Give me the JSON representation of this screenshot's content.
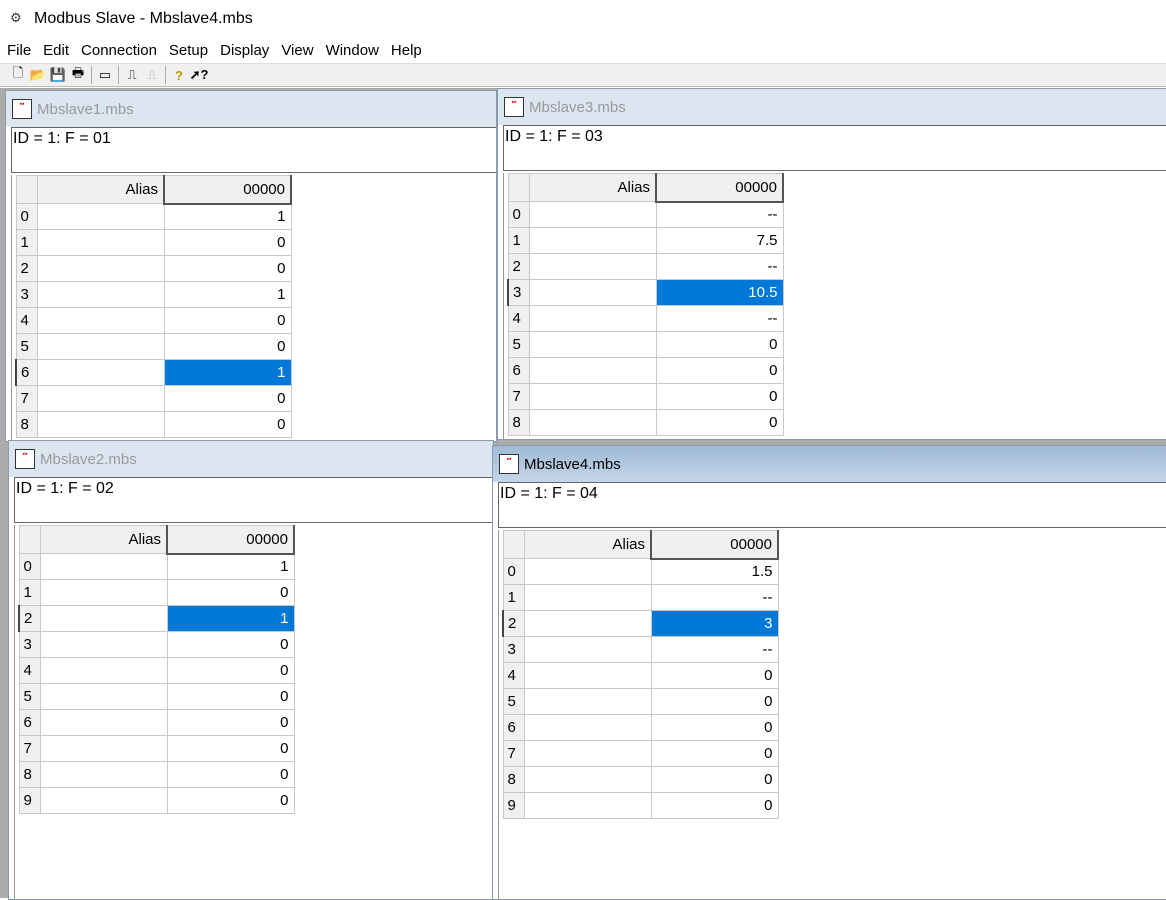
{
  "app": {
    "title": "Modbus Slave - Mbslave4.mbs"
  },
  "menu": [
    "File",
    "Edit",
    "Connection",
    "Setup",
    "Display",
    "View",
    "Window",
    "Help"
  ],
  "toolbar": [
    "new-icon",
    "open-icon",
    "save-icon",
    "print-icon",
    "window-icon",
    "connect-icon",
    "disconnect-icon",
    "help-icon",
    "context-help-icon"
  ],
  "windows": [
    {
      "id": "w1",
      "title": "Mbslave1.mbs",
      "info": "ID = 1: F = 01",
      "active": false,
      "alias_header": "Alias",
      "col_header": "00000",
      "rows": [
        "0",
        "1",
        "2",
        "3",
        "4",
        "5",
        "6",
        "7",
        "8"
      ],
      "values": [
        "1",
        "0",
        "0",
        "1",
        "0",
        "0",
        "1",
        "0",
        "0"
      ],
      "selected_row": 6
    },
    {
      "id": "w3",
      "title": "Mbslave3.mbs",
      "info": "ID = 1: F = 03",
      "active": false,
      "alias_header": "Alias",
      "col_header": "00000",
      "rows": [
        "0",
        "1",
        "2",
        "3",
        "4",
        "5",
        "6",
        "7",
        "8"
      ],
      "values": [
        "--",
        "7.5",
        "--",
        "10.5",
        "--",
        "0",
        "0",
        "0",
        "0"
      ],
      "selected_row": 3
    },
    {
      "id": "w2",
      "title": "Mbslave2.mbs",
      "info": "ID = 1: F = 02",
      "active": false,
      "alias_header": "Alias",
      "col_header": "00000",
      "rows": [
        "0",
        "1",
        "2",
        "3",
        "4",
        "5",
        "6",
        "7",
        "8",
        "9"
      ],
      "values": [
        "1",
        "0",
        "1",
        "0",
        "0",
        "0",
        "0",
        "0",
        "0",
        "0"
      ],
      "selected_row": 2
    },
    {
      "id": "w4",
      "title": "Mbslave4.mbs",
      "info": "ID = 1: F = 04",
      "active": true,
      "alias_header": "Alias",
      "col_header": "00000",
      "rows": [
        "0",
        "1",
        "2",
        "3",
        "4",
        "5",
        "6",
        "7",
        "8",
        "9"
      ],
      "values": [
        "1.5",
        "--",
        "3",
        "--",
        "0",
        "0",
        "0",
        "0",
        "0",
        "0"
      ],
      "selected_row": 2
    }
  ],
  "colors": {
    "selection": "#0078d7",
    "active_title": "#a8c0da"
  }
}
